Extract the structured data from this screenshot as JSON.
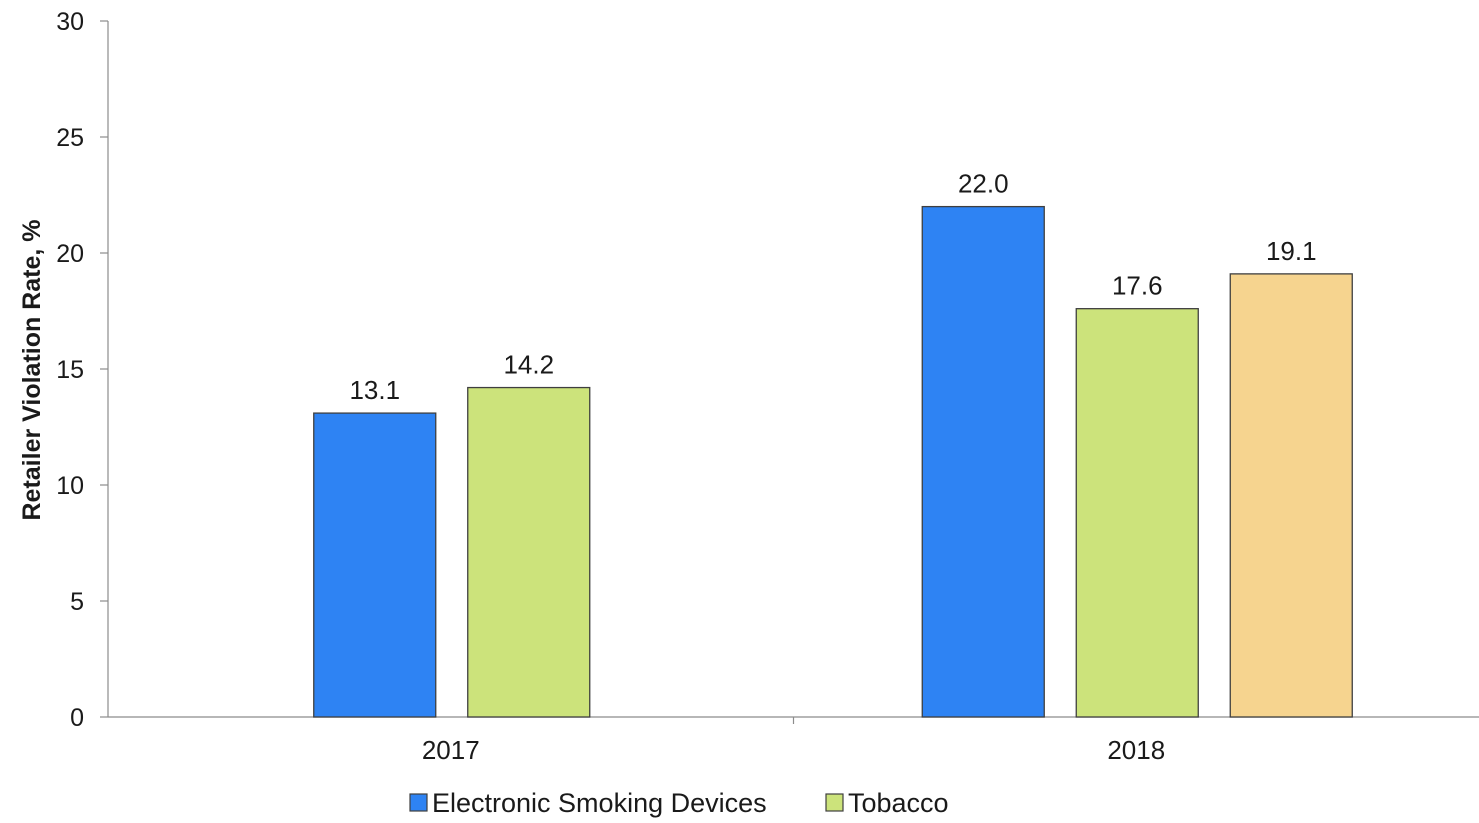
{
  "chart_data": {
    "type": "bar",
    "title": "",
    "xlabel": "",
    "ylabel": "Retailer Violation Rate, %",
    "ylim": [
      0,
      30
    ],
    "yticks": [
      0,
      5,
      10,
      15,
      20,
      25,
      30
    ],
    "categories": [
      "2017",
      "2018"
    ],
    "grid": false,
    "legend_position": "bottom",
    "series": [
      {
        "name": "Electronic Smoking Devices",
        "color": "#2e83f3",
        "values": [
          13.1,
          22.0
        ],
        "labels": [
          "13.1",
          "22.0"
        ]
      },
      {
        "name": "Tobacco",
        "color": "#cce37b",
        "values": [
          14.2,
          17.6
        ],
        "labels": [
          "14.2",
          "17.6"
        ]
      },
      {
        "color": "#f6d48f",
        "values": [
          null,
          19.1
        ],
        "labels": [
          null,
          "19.1"
        ]
      }
    ]
  }
}
